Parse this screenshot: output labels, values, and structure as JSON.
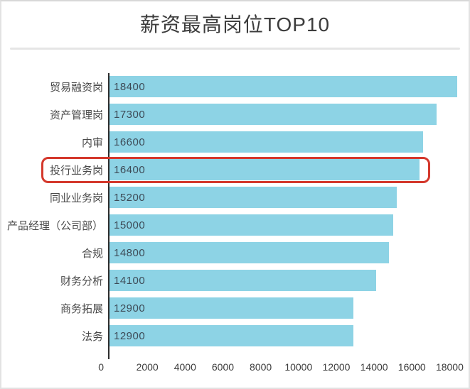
{
  "page": {
    "title": "薪资最高岗位TOP10"
  },
  "chart_data": {
    "type": "bar",
    "orientation": "horizontal",
    "title": "薪资最高岗位TOP10",
    "categories": [
      "贸易融资岗",
      "资产管理岗",
      "内审",
      "投行业务岗",
      "同业业务岗",
      "产品经理（公司部）",
      "合规",
      "财务分析",
      "商务拓展",
      "法务"
    ],
    "values": [
      18400,
      17300,
      16600,
      16400,
      15200,
      15000,
      14800,
      14100,
      12900,
      12900
    ],
    "highlighted_index": 3,
    "highlighted_category": "投行业务岗",
    "x_ticks": [
      0,
      2000,
      4000,
      6000,
      8000,
      10000,
      12000,
      14000,
      16000,
      18000
    ],
    "xlim": [
      0,
      19000
    ],
    "xlabel": "",
    "ylabel": "",
    "grid": false,
    "legend": false,
    "bar_color": "#8dd3e5",
    "value_label_color": "#3d4b57",
    "category_label_color": "#4a4a4a",
    "axis_line_color": "#2d2d2d",
    "highlight_color": "#d4382c",
    "title_color": "#3c3c3c"
  }
}
